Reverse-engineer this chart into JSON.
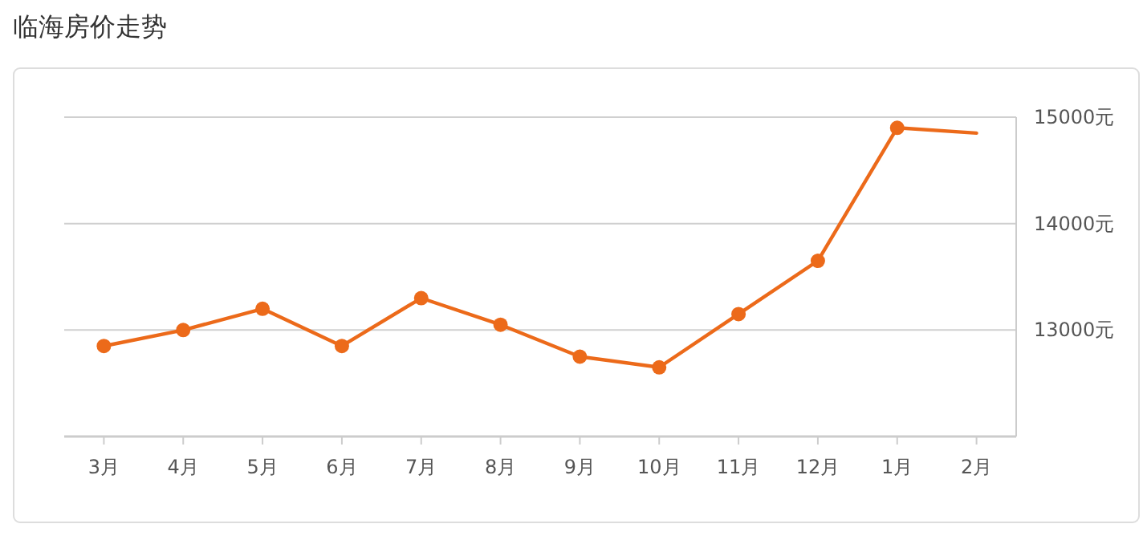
{
  "chart_data": {
    "type": "line",
    "title": "临海房价走势",
    "categories": [
      "3月",
      "4月",
      "5月",
      "6月",
      "7月",
      "8月",
      "9月",
      "10月",
      "11月",
      "12月",
      "1月",
      "2月"
    ],
    "ylim": [
      12000,
      15000
    ],
    "yticks": [
      {
        "value": 13000,
        "label": "13000元"
      },
      {
        "value": 14000,
        "label": "14000元"
      },
      {
        "value": 15000,
        "label": "15000元"
      }
    ],
    "series": [
      {
        "color": "#ec6a1a",
        "values": [
          12850,
          13000,
          13200,
          12850,
          13300,
          13050,
          12750,
          12650,
          13150,
          13650,
          14900,
          null
        ],
        "marker": "circle"
      },
      {
        "color": "#ec6a1a",
        "values": [
          null,
          null,
          null,
          null,
          null,
          null,
          null,
          null,
          null,
          null,
          14900,
          14850
        ],
        "marker": "none"
      }
    ],
    "grid": "y",
    "line_style": "solid"
  }
}
